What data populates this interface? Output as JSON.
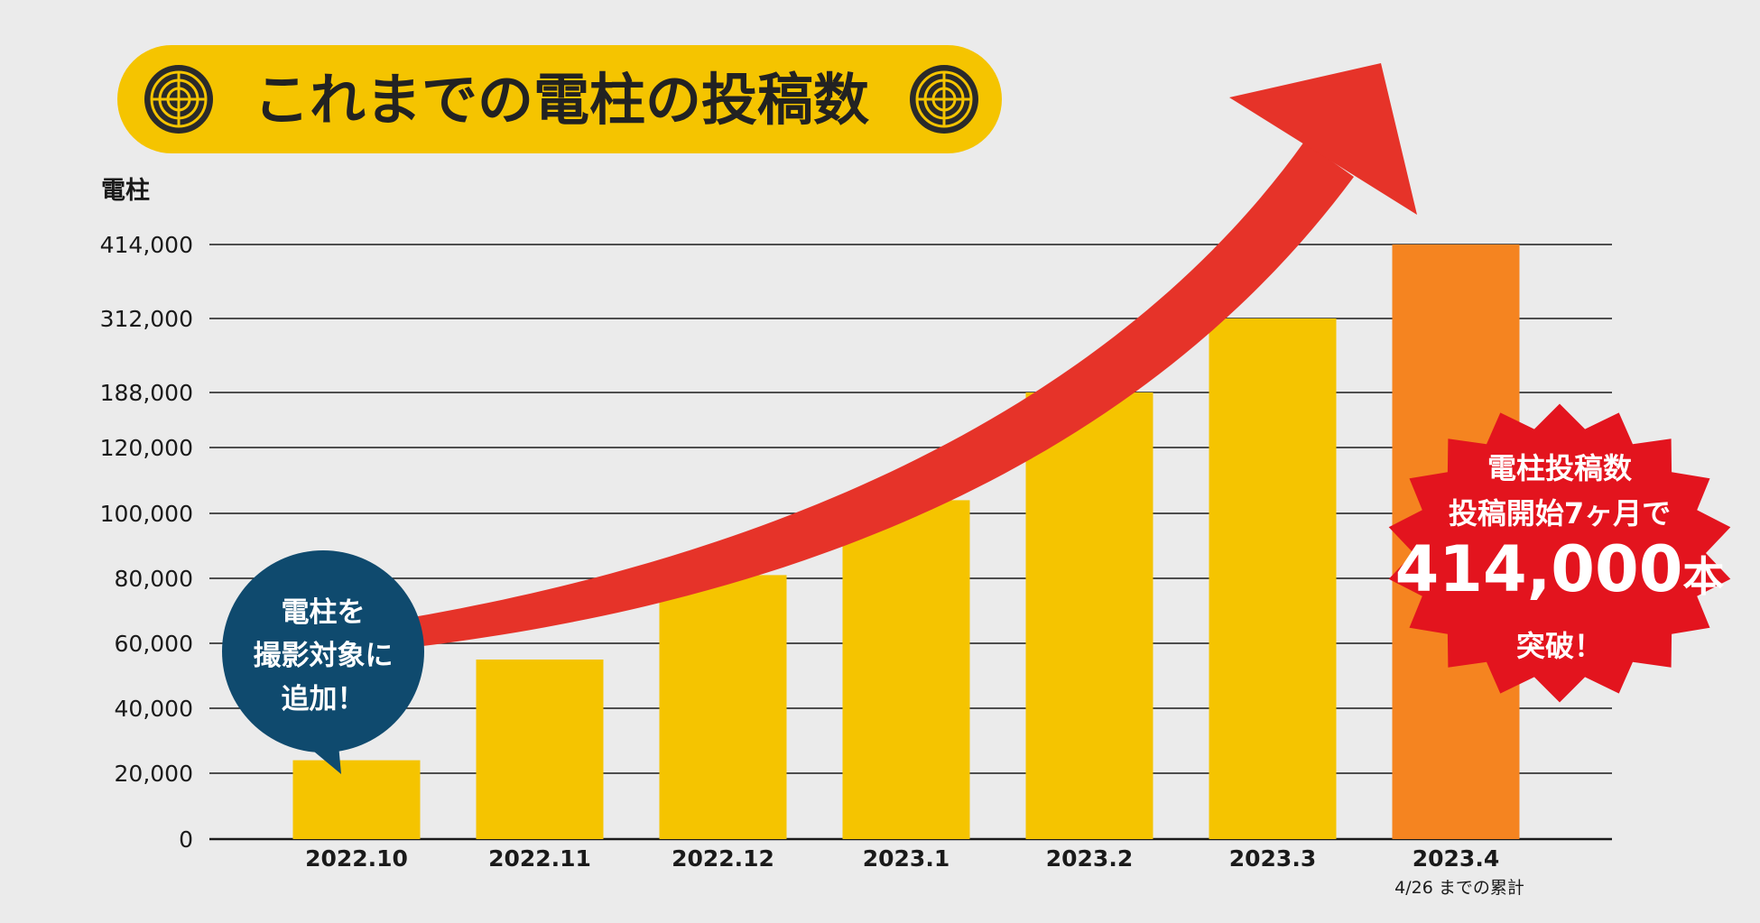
{
  "chart_data": {
    "type": "bar",
    "title": "これまでの電柱の投稿数",
    "ylabel": "電柱",
    "categories": [
      "2022.10",
      "2022.11",
      "2022.12",
      "2023.1",
      "2023.2",
      "2023.3",
      "2023.4"
    ],
    "values": [
      24000,
      55000,
      81000,
      104000,
      188000,
      312000,
      414000
    ],
    "y_ticks": [
      0,
      20000,
      40000,
      60000,
      80000,
      100000,
      120000,
      188000,
      312000,
      414000
    ],
    "y_tick_labels": [
      "0",
      "20,000",
      "40,000",
      "60,000",
      "80,000",
      "100,000",
      "120,000",
      "188,000",
      "312,000",
      "414,000"
    ],
    "y_scale": "non-linear (piecewise)",
    "grid": true,
    "last_category_note": "4/26 までの累計",
    "annotations": {
      "bubble_lines": [
        "電柱を",
        "撮影対象に",
        "追加！"
      ],
      "burst_line1": "電柱投稿数",
      "burst_line2": "投稿開始7ヶ月で",
      "burst_big": "414,000",
      "burst_unit": "本",
      "burst_line4": "突破！"
    }
  },
  "colors": {
    "background": "#ebebeb",
    "bar": "#f5c400",
    "bar_highlight": "#f58420",
    "title_pill": "#f5c400",
    "arrow": "#e63329",
    "burst": "#e3141e",
    "bubble": "#0f4a6e",
    "top_tick": "#e3141e",
    "grid": "#1a1a1a"
  }
}
